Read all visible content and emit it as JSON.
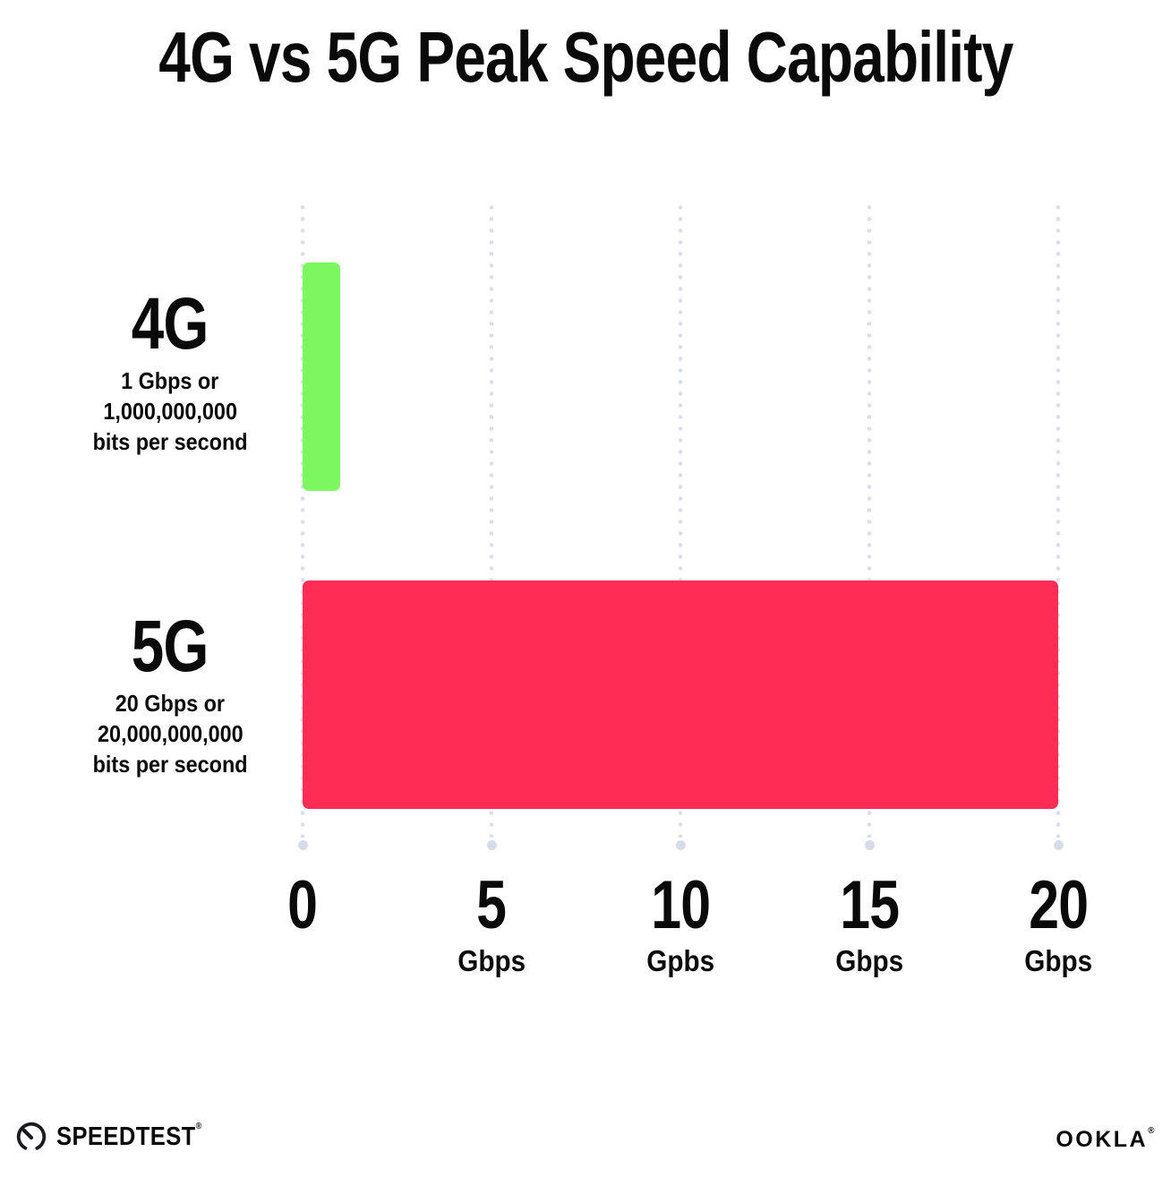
{
  "title": "4G vs 5G Peak Speed Capability",
  "chart_data": {
    "type": "bar",
    "orientation": "horizontal",
    "title": "4G vs 5G Peak Speed Capability",
    "categories": [
      "4G",
      "5G"
    ],
    "values": [
      1,
      20
    ],
    "xlabel": "Gbps",
    "xlim": [
      0,
      20
    ],
    "grid": "dotted-vertical-gridlines-at-each-tick",
    "legend": "none",
    "rows": [
      {
        "label": "4G",
        "value": 1,
        "color": "#7df75f",
        "sub1": "1 Gbps or",
        "sub2": "1,000,000,000",
        "sub3": "bits per second"
      },
      {
        "label": "5G",
        "value": 20,
        "color": "#ff2d56",
        "sub1": "20 Gbps or",
        "sub2": "20,000,000,000",
        "sub3": "bits per second"
      }
    ],
    "ticks": [
      {
        "num": "0",
        "unit": ""
      },
      {
        "num": "5",
        "unit": "Gbps"
      },
      {
        "num": "10",
        "unit": "Gpbs"
      },
      {
        "num": "15",
        "unit": "Gbps"
      },
      {
        "num": "20",
        "unit": "Gbps"
      }
    ]
  },
  "colors": {
    "bar_4g": "#7df75f",
    "bar_5g": "#ff2d56",
    "grid_dot": "#dcdfe9",
    "grid_end_dot": "#d8dce8",
    "text": "#0a0a0a",
    "background": "#ffffff"
  },
  "footer": {
    "speedtest_label": "SPEEDTEST",
    "speedtest_mark": "®",
    "ookla_label": "OOKLA",
    "ookla_mark": "®"
  }
}
